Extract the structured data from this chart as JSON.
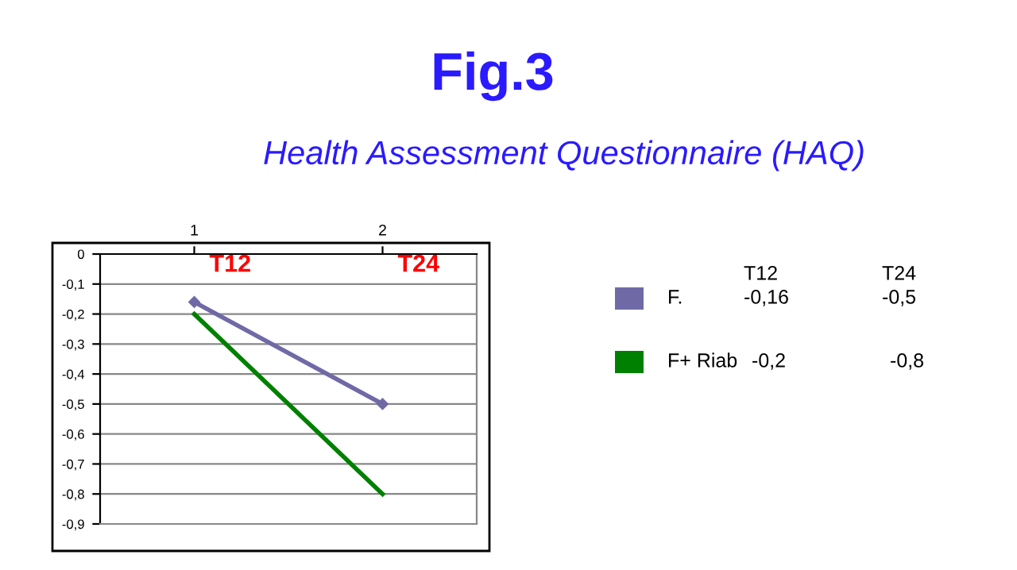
{
  "chart_data": {
    "type": "line",
    "title": "Fig.3",
    "subtitle": "Health Assessment Questionnaire (HAQ)",
    "categories": [
      "1",
      "2"
    ],
    "series": [
      {
        "name": "F.",
        "color": "#6f6aa6",
        "values": [
          -0.16,
          -0.5
        ],
        "marker": "diamond"
      },
      {
        "name": "F+ Riab",
        "color": "#008000",
        "values": [
          -0.2,
          -0.8
        ],
        "marker": "none"
      }
    ],
    "annotations": [
      "T12",
      "T24",
      "-0,16",
      "-0,5",
      "-0,2",
      "-0,8"
    ],
    "ylim": [
      -0.9,
      0
    ],
    "yticks": [
      0,
      {
        "value": -0.1,
        "label": "-0,1"
      },
      {
        "value": -0.2,
        "label": "-0,2"
      },
      {
        "value": -0.3,
        "label": "-0,3"
      },
      {
        "value": -0.4,
        "label": "-0,4"
      },
      {
        "value": -0.5,
        "label": "-0,5"
      },
      {
        "value": -0.6,
        "label": "-0,6"
      },
      {
        "value": -0.7,
        "label": "-0,7"
      },
      {
        "value": -0.8,
        "label": "-0,8"
      },
      {
        "value": -0.9,
        "label": "-0,9"
      }
    ],
    "grid": "y",
    "legend": "right",
    "line_style": "solid"
  }
}
